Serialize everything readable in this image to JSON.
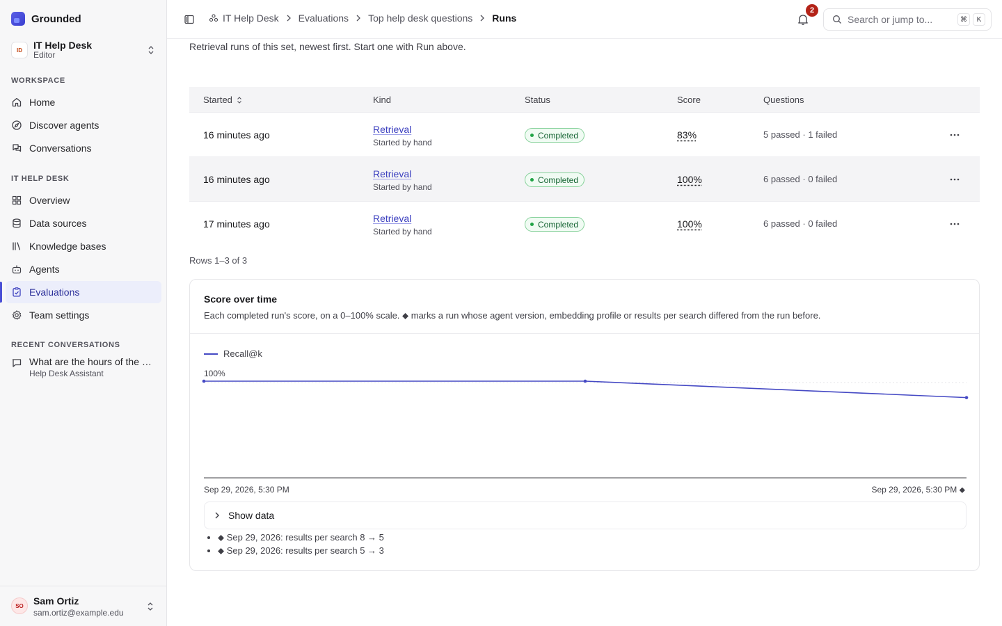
{
  "brand": {
    "name": "Grounded"
  },
  "team": {
    "initials": "ID",
    "name": "IT Help Desk",
    "role": "Editor"
  },
  "sidebar": {
    "workspace_label": "WORKSPACE",
    "workspace_items": [
      {
        "label": "Home",
        "icon": "home-icon"
      },
      {
        "label": "Discover agents",
        "icon": "compass-icon"
      },
      {
        "label": "Conversations",
        "icon": "chat-icon"
      }
    ],
    "team_label": "IT HELP DESK",
    "team_items": [
      {
        "label": "Overview",
        "icon": "grid-icon"
      },
      {
        "label": "Data sources",
        "icon": "database-icon"
      },
      {
        "label": "Knowledge bases",
        "icon": "library-icon"
      },
      {
        "label": "Agents",
        "icon": "bot-icon"
      },
      {
        "label": "Evaluations",
        "icon": "clipboard-check-icon",
        "active": true
      },
      {
        "label": "Team settings",
        "icon": "gear-icon"
      }
    ],
    "recent_label": "RECENT CONVERSATIONS",
    "recent": [
      {
        "title": "What are the hours of the help desk?",
        "agent": "Help Desk Assistant"
      }
    ]
  },
  "user": {
    "initials": "SO",
    "name": "Sam Ortiz",
    "email": "sam.ortiz@example.edu"
  },
  "header": {
    "breadcrumbs": [
      "IT Help Desk",
      "Evaluations",
      "Top help desk questions"
    ],
    "current": "Runs",
    "notifications": "2",
    "search_placeholder": "Search or jump to...",
    "kbd_1": "⌘",
    "kbd_2": "K"
  },
  "main": {
    "intro": "Retrieval runs of this set, newest first. Start one with Run above.",
    "columns": [
      "Started",
      "Kind",
      "Status",
      "Score",
      "Questions"
    ],
    "rows": [
      {
        "started": "16 minutes ago",
        "kind": "Retrieval",
        "kind_sub": "Started by hand",
        "status": "Completed",
        "score": "83%",
        "questions": "5 passed · 1 failed"
      },
      {
        "started": "16 minutes ago",
        "kind": "Retrieval",
        "kind_sub": "Started by hand",
        "status": "Completed",
        "score": "100%",
        "questions": "6 passed · 0 failed"
      },
      {
        "started": "17 minutes ago",
        "kind": "Retrieval",
        "kind_sub": "Started by hand",
        "status": "Completed",
        "score": "100%",
        "questions": "6 passed · 0 failed"
      }
    ],
    "rows_count": "Rows 1–3 of 3"
  },
  "card": {
    "title": "Score over time",
    "description": "Each completed run's score, on a 0–100% scale. ⬥ marks a run whose agent version, embedding profile or results per search differed from the run before.",
    "show_data": "Show data",
    "changes": [
      "⬥ Sep 29, 2026: results per search 8 → 5",
      "⬥ Sep 29, 2026: results per search 5 → 3"
    ]
  },
  "chart_data": {
    "type": "line",
    "series": [
      {
        "name": "Recall@k",
        "values": [
          100,
          100,
          83
        ]
      }
    ],
    "x_start_label": "Sep 29, 2026, 5:30 PM",
    "x_end_label": "Sep 29, 2026, 5:30 PM ⬥",
    "y_max_label": "100%",
    "ylim": [
      0,
      100
    ],
    "grid": false,
    "legend": "top-left",
    "color": "#4549c4"
  }
}
